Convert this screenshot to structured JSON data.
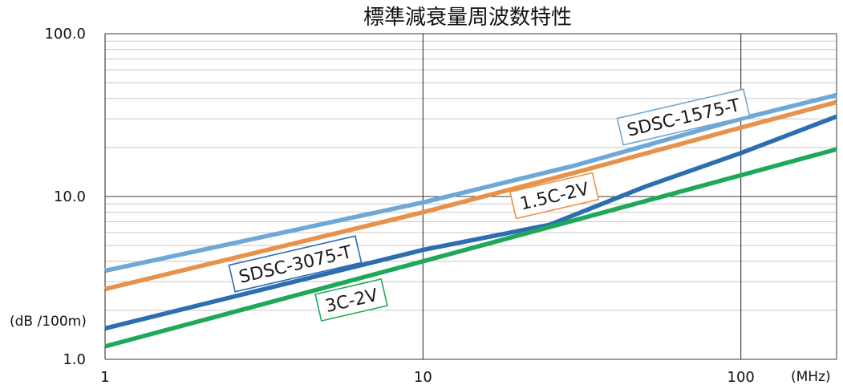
{
  "chart_data": {
    "type": "line",
    "title": "標準減衰量周波数特性",
    "xlabel": "(MHz)",
    "ylabel": "(dB /100m)",
    "x_scale": "log",
    "y_scale": "log",
    "xlim": [
      1,
      200
    ],
    "ylim": [
      1,
      100
    ],
    "x_ticks": [
      "1",
      "10",
      "100"
    ],
    "y_ticks": [
      "1.0",
      "10.0",
      "100.0"
    ],
    "grid": true,
    "legend": "inline labels",
    "series": [
      {
        "name": "SDSC-1575-T",
        "color": "#6fa8d6",
        "x": [
          1,
          10,
          30,
          100,
          200
        ],
        "y": [
          3.5,
          9.2,
          15.5,
          30,
          42
        ]
      },
      {
        "name": "1.5C-2V",
        "color": "#e8914a",
        "x": [
          1,
          10,
          30,
          100,
          200
        ],
        "y": [
          2.7,
          8.0,
          14.0,
          26.5,
          38
        ]
      },
      {
        "name": "SDSC-3075-T",
        "color": "#2d6eb0",
        "x": [
          1,
          10,
          25,
          50,
          100,
          200
        ],
        "y": [
          1.55,
          4.7,
          6.7,
          11.5,
          18.5,
          31
        ]
      },
      {
        "name": "3C-2V",
        "color": "#1fa85a",
        "x": [
          1,
          10,
          100,
          200
        ],
        "y": [
          1.2,
          4.0,
          13.5,
          19.5
        ]
      }
    ]
  }
}
